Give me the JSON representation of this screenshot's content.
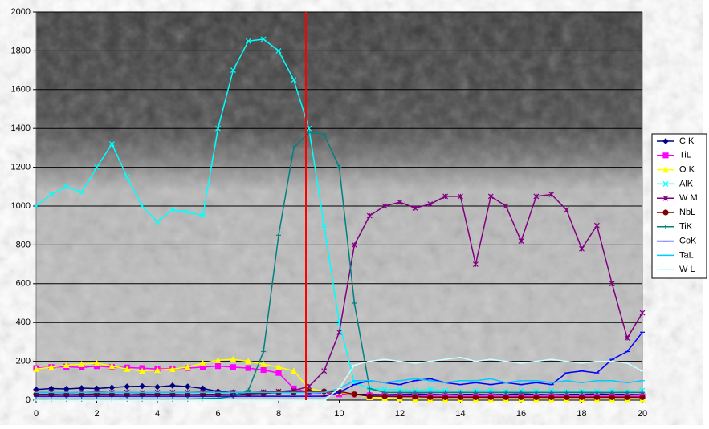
{
  "chart_data": {
    "type": "line",
    "x": [
      0,
      0.5,
      1,
      1.5,
      2,
      2.5,
      3,
      3.5,
      4,
      4.5,
      5,
      5.5,
      6,
      6.5,
      7,
      7.5,
      8,
      8.5,
      9,
      9.5,
      10,
      10.5,
      11,
      11.5,
      12,
      12.5,
      13,
      13.5,
      14,
      14.5,
      15,
      15.5,
      16,
      16.5,
      17,
      17.5,
      18,
      18.5,
      19,
      19.5,
      20
    ],
    "series": [
      {
        "name": "C K",
        "color": "#000080",
        "marker": "diamond",
        "values": [
          55,
          60,
          58,
          62,
          60,
          65,
          70,
          72,
          68,
          75,
          70,
          60,
          45,
          40,
          38,
          40,
          42,
          45,
          40,
          38,
          35,
          30,
          30,
          28,
          30,
          32,
          30,
          28,
          30,
          30,
          28,
          30,
          32,
          30,
          28,
          30,
          30,
          32,
          30,
          30,
          28
        ]
      },
      {
        "name": "TiL",
        "color": "#FF00FF",
        "marker": "square",
        "values": [
          165,
          170,
          172,
          168,
          175,
          170,
          168,
          165,
          160,
          162,
          165,
          170,
          175,
          170,
          165,
          155,
          140,
          60,
          40,
          35,
          30,
          28,
          25,
          25,
          22,
          22,
          20,
          20,
          20,
          20,
          20,
          20,
          20,
          20,
          20,
          20,
          20,
          20,
          20,
          20,
          20
        ]
      },
      {
        "name": "O K",
        "color": "#FFFF00",
        "marker": "triangle",
        "values": [
          160,
          170,
          180,
          185,
          190,
          175,
          160,
          150,
          155,
          160,
          170,
          190,
          205,
          210,
          200,
          185,
          170,
          150,
          60,
          45,
          40,
          30,
          15,
          10,
          8,
          5,
          5,
          5,
          5,
          5,
          5,
          5,
          5,
          5,
          5,
          5,
          5,
          5,
          5,
          5,
          5
        ]
      },
      {
        "name": "AlK",
        "color": "#00FFFF",
        "marker": "x",
        "values": [
          1000,
          1060,
          1100,
          1070,
          1200,
          1320,
          1150,
          1000,
          920,
          980,
          970,
          950,
          1400,
          1700,
          1850,
          1860,
          1800,
          1650,
          1400,
          900,
          400,
          90,
          60,
          55,
          55,
          50,
          55,
          50,
          45,
          50,
          50,
          45,
          50,
          45,
          50,
          45,
          45,
          45,
          50,
          45,
          50
        ]
      },
      {
        "name": "W M",
        "color": "#800080",
        "marker": "star",
        "values": [
          40,
          40,
          38,
          40,
          42,
          40,
          40,
          38,
          40,
          40,
          40,
          42,
          40,
          40,
          40,
          42,
          45,
          50,
          70,
          150,
          350,
          800,
          950,
          1000,
          1020,
          990,
          1010,
          1050,
          1050,
          700,
          1050,
          1000,
          820,
          1050,
          1060,
          980,
          780,
          900,
          600,
          320,
          450
        ]
      },
      {
        "name": "NbL",
        "color": "#800000",
        "marker": "circle",
        "values": [
          30,
          30,
          28,
          30,
          32,
          30,
          28,
          30,
          30,
          30,
          28,
          30,
          30,
          28,
          32,
          35,
          40,
          40,
          45,
          45,
          45,
          30,
          20,
          20,
          18,
          18,
          15,
          15,
          15,
          15,
          15,
          15,
          15,
          15,
          15,
          15,
          15,
          15,
          15,
          15,
          15
        ]
      },
      {
        "name": "TiK",
        "color": "#008080",
        "marker": "plus",
        "values": [
          5,
          5,
          5,
          5,
          5,
          5,
          5,
          5,
          5,
          5,
          5,
          8,
          10,
          20,
          50,
          250,
          850,
          1300,
          1380,
          1370,
          1200,
          500,
          60,
          40,
          40,
          40,
          40,
          40,
          40,
          40,
          40,
          40,
          40,
          40,
          40,
          40,
          40,
          40,
          40,
          40,
          40
        ]
      },
      {
        "name": "CoK",
        "color": "#0000FF",
        "marker": "dash",
        "values": [
          20,
          20,
          20,
          20,
          20,
          20,
          20,
          20,
          20,
          20,
          20,
          20,
          20,
          20,
          20,
          20,
          20,
          20,
          20,
          20,
          40,
          80,
          100,
          90,
          80,
          100,
          110,
          90,
          80,
          90,
          80,
          90,
          80,
          90,
          80,
          140,
          150,
          140,
          210,
          250,
          350
        ]
      },
      {
        "name": "TaL",
        "color": "#00CCFF",
        "marker": "dash",
        "values": [
          40,
          40,
          40,
          40,
          40,
          40,
          40,
          40,
          40,
          40,
          40,
          40,
          40,
          40,
          40,
          40,
          40,
          40,
          40,
          40,
          60,
          100,
          100,
          90,
          100,
          110,
          100,
          90,
          100,
          100,
          110,
          90,
          100,
          100,
          90,
          100,
          90,
          100,
          100,
          90,
          100
        ]
      },
      {
        "name": "W L",
        "color": "#CCFFFF",
        "marker": "dash",
        "values": [
          0,
          0,
          0,
          0,
          0,
          0,
          0,
          0,
          0,
          0,
          0,
          0,
          0,
          0,
          0,
          0,
          0,
          0,
          0,
          0,
          60,
          180,
          200,
          210,
          200,
          190,
          200,
          210,
          220,
          200,
          210,
          200,
          190,
          200,
          210,
          200,
          190,
          200,
          200,
          190,
          150
        ]
      }
    ],
    "xlim": [
      0,
      20
    ],
    "xticks": [
      0,
      2,
      4,
      6,
      8,
      10,
      12,
      14,
      16,
      18,
      20
    ],
    "ylim": [
      0,
      2000
    ],
    "yticks": [
      0,
      200,
      400,
      600,
      800,
      1000,
      1200,
      1400,
      1600,
      1800,
      2000
    ],
    "grid": true,
    "legend": "right"
  }
}
